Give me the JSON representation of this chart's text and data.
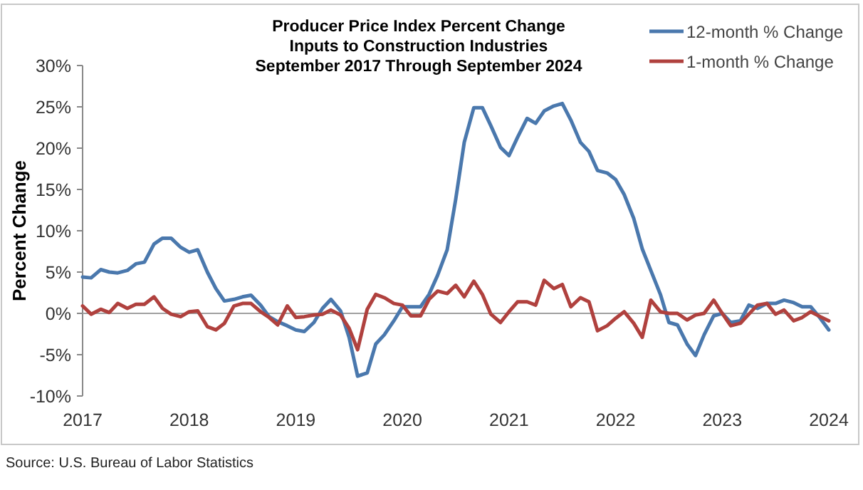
{
  "chart_data": {
    "type": "line",
    "title": "Producer Price Index Percent Change",
    "subtitle": "Inputs to Construction Industries\nSeptember 2017 Through September 2024",
    "ylabel": "Percent Change",
    "x": [
      2017.0,
      2017.08,
      2017.17,
      2017.25,
      2017.33,
      2017.42,
      2017.5,
      2017.58,
      2017.67,
      2017.75,
      2017.83,
      2017.92,
      2018.0,
      2018.08,
      2018.17,
      2018.25,
      2018.33,
      2018.42,
      2018.5,
      2018.58,
      2018.67,
      2018.75,
      2018.83,
      2018.92,
      2019.0,
      2019.08,
      2019.17,
      2019.25,
      2019.33,
      2019.42,
      2019.5,
      2019.58,
      2019.67,
      2019.75,
      2019.83,
      2019.92,
      2020.0,
      2020.08,
      2020.17,
      2020.25,
      2020.33,
      2020.42,
      2020.5,
      2020.58,
      2020.67,
      2020.75,
      2020.83,
      2020.92,
      2021.0,
      2021.08,
      2021.17,
      2021.25,
      2021.33,
      2021.42,
      2021.5,
      2021.58,
      2021.67,
      2021.75,
      2021.83,
      2021.92,
      2022.0,
      2022.08,
      2022.17,
      2022.25,
      2022.33,
      2022.42,
      2022.5,
      2022.58,
      2022.67,
      2022.75,
      2022.83,
      2022.92,
      2023.0,
      2023.08,
      2023.17,
      2023.25,
      2023.33,
      2023.42,
      2023.5,
      2023.58,
      2023.67,
      2023.75,
      2023.83,
      2023.92,
      2024.0
    ],
    "series": [
      {
        "name": "12-month % Change",
        "color": "#4a78ad",
        "values": [
          4.4,
          4.3,
          5.3,
          5.0,
          4.9,
          5.2,
          6.0,
          6.2,
          8.4,
          9.1,
          9.1,
          8.0,
          7.4,
          7.7,
          5.0,
          3.0,
          1.5,
          1.7,
          2.0,
          2.2,
          1.0,
          -0.4,
          -1.0,
          -1.5,
          -2.0,
          -2.2,
          -1.1,
          0.6,
          1.7,
          0.3,
          -2.9,
          -7.6,
          -7.2,
          -3.7,
          -2.6,
          -0.9,
          0.8,
          0.8,
          0.8,
          2.3,
          4.6,
          7.7,
          13.8,
          20.7,
          24.9,
          24.9,
          22.7,
          20.1,
          19.1,
          21.3,
          23.6,
          23.0,
          24.5,
          25.1,
          25.4,
          23.4,
          20.7,
          19.6,
          17.3,
          17.0,
          16.2,
          14.4,
          11.5,
          7.8,
          5.2,
          2.3,
          -1.1,
          -1.4,
          -3.7,
          -5.1,
          -2.6,
          -0.3,
          0.0,
          -1.1,
          -0.9,
          1.0,
          0.6,
          1.2,
          1.2,
          1.6,
          1.3,
          0.8,
          0.8,
          -0.6,
          -2.0
        ]
      },
      {
        "name": "1-month % Change",
        "color": "#b0413e",
        "values": [
          0.9,
          -0.1,
          0.5,
          0.1,
          1.2,
          0.6,
          1.1,
          1.1,
          2.0,
          0.6,
          -0.1,
          -0.4,
          0.2,
          0.3,
          -1.6,
          -2.0,
          -1.2,
          0.9,
          1.2,
          1.2,
          0.2,
          -0.5,
          -1.4,
          0.9,
          -0.5,
          -0.4,
          -0.2,
          -0.1,
          0.4,
          -0.2,
          -1.8,
          -4.4,
          0.5,
          2.3,
          1.9,
          1.2,
          1.0,
          -0.3,
          -0.3,
          1.7,
          2.7,
          2.4,
          3.4,
          2.0,
          3.9,
          2.3,
          -0.1,
          -1.1,
          0.2,
          1.4,
          1.4,
          1.0,
          4.0,
          3.0,
          3.5,
          0.8,
          1.9,
          1.4,
          -2.1,
          -1.5,
          -0.6,
          0.2,
          -1.2,
          -2.9,
          1.6,
          0.2,
          0.0,
          0.0,
          -0.8,
          -0.2,
          0.0,
          1.6,
          0.0,
          -1.5,
          -1.2,
          -0.1,
          1.0,
          1.2,
          -0.1,
          0.4,
          -0.9,
          -0.5,
          0.2,
          -0.4,
          -0.9
        ]
      }
    ],
    "xlim": [
      2017,
      2024
    ],
    "xticks": [
      2017,
      2018,
      2019,
      2020,
      2021,
      2022,
      2023,
      2024
    ],
    "ylim": [
      -10,
      30
    ],
    "yticks": [
      {
        "value": -10,
        "label": "-10%"
      },
      {
        "value": -5,
        "label": "-5%"
      },
      {
        "value": 0,
        "label": "0%"
      },
      {
        "value": 5,
        "label": "5%"
      },
      {
        "value": 10,
        "label": "10%"
      },
      {
        "value": 15,
        "label": "15%"
      },
      {
        "value": 20,
        "label": "20%"
      },
      {
        "value": 25,
        "label": "25%"
      },
      {
        "value": 30,
        "label": "30%"
      }
    ],
    "ref_lines": [
      {
        "axis": "y",
        "value": 0,
        "color": "#a0a0a0"
      }
    ],
    "legend": "top right",
    "grid": false,
    "marker": "none",
    "line_style": "solid",
    "annotations": [
      "Source: U.S. Bureau of Labor Statistics"
    ]
  }
}
